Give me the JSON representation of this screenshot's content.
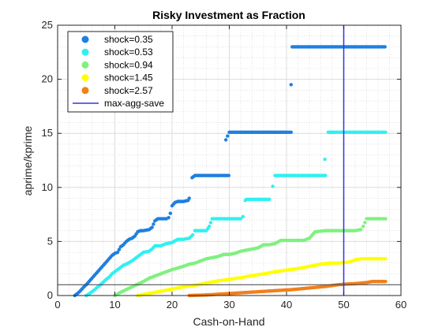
{
  "chart_data": {
    "type": "scatter",
    "title": "Risky Investment as Fraction",
    "xlabel": "Cash-on-Hand",
    "ylabel": "aprime/kprime",
    "xlim": [
      0,
      60
    ],
    "ylim": [
      0,
      25
    ],
    "xticks": [
      0,
      10,
      20,
      30,
      40,
      50,
      60
    ],
    "yticks": [
      0,
      5,
      10,
      15,
      20,
      25
    ],
    "grid": true,
    "minor_grid": true,
    "legend_position": "top-left",
    "reference_hline": {
      "y": 1,
      "color": "#404040"
    },
    "vline": {
      "name": "max-agg-save",
      "x": 50,
      "color": "#3333e6"
    },
    "series": [
      {
        "name": "shock=0.35",
        "color": "#1f7fe0",
        "points": [
          [
            3.0,
            0.0
          ],
          [
            3.5,
            0.2
          ],
          [
            4.0,
            0.45
          ],
          [
            4.5,
            0.75
          ],
          [
            5.0,
            1.0
          ],
          [
            5.5,
            1.3
          ],
          [
            6.0,
            1.6
          ],
          [
            6.5,
            1.9
          ],
          [
            7.0,
            2.2
          ],
          [
            7.5,
            2.5
          ],
          [
            8.0,
            2.8
          ],
          [
            8.5,
            3.1
          ],
          [
            9.0,
            3.4
          ],
          [
            9.5,
            3.7
          ],
          [
            10.0,
            3.9
          ],
          [
            10.5,
            4.0
          ],
          [
            11.0,
            4.5
          ],
          [
            11.5,
            4.7
          ],
          [
            12.0,
            5.0
          ],
          [
            12.5,
            5.2
          ],
          [
            13.0,
            5.3
          ],
          [
            13.5,
            5.5
          ],
          [
            14.0,
            5.9
          ],
          [
            14.5,
            6.0
          ],
          [
            15.0,
            6.0
          ],
          [
            16.0,
            6.1
          ],
          [
            16.5,
            6.3
          ],
          [
            17.0,
            6.9
          ],
          [
            17.5,
            7.1
          ],
          [
            18.0,
            7.1
          ],
          [
            19.0,
            7.1
          ],
          [
            19.4,
            7.2
          ],
          [
            19.7,
            7.6
          ],
          [
            20.0,
            8.3
          ],
          [
            20.5,
            8.6
          ],
          [
            21.0,
            8.7
          ],
          [
            22.0,
            8.7
          ],
          [
            22.8,
            8.8
          ],
          [
            23.0,
            9.0
          ],
          [
            23.5,
            10.9
          ],
          [
            24.0,
            11.1
          ],
          [
            26.0,
            11.1
          ],
          [
            28.0,
            11.1
          ],
          [
            29.9,
            11.1
          ],
          [
            29.4,
            14.4
          ],
          [
            30.0,
            15.1
          ],
          [
            32.0,
            15.1
          ],
          [
            34.0,
            15.1
          ],
          [
            36.0,
            15.1
          ],
          [
            38.0,
            15.1
          ],
          [
            40.0,
            15.1
          ],
          [
            40.8,
            15.1
          ],
          [
            40.8,
            19.5
          ],
          [
            41.0,
            23.0
          ],
          [
            44.0,
            23.0
          ],
          [
            47.0,
            23.0
          ],
          [
            50.0,
            23.0
          ],
          [
            53.0,
            23.0
          ],
          [
            56.0,
            23.0
          ],
          [
            57.2,
            23.0
          ]
        ]
      },
      {
        "name": "shock=0.53",
        "color": "#30f0f0",
        "points": [
          [
            5.0,
            0.0
          ],
          [
            5.5,
            0.15
          ],
          [
            6.0,
            0.35
          ],
          [
            6.5,
            0.55
          ],
          [
            7.0,
            0.8
          ],
          [
            7.5,
            1.0
          ],
          [
            8.0,
            1.25
          ],
          [
            8.5,
            1.5
          ],
          [
            9.0,
            1.7
          ],
          [
            9.5,
            2.0
          ],
          [
            10.0,
            2.2
          ],
          [
            10.5,
            2.4
          ],
          [
            11.0,
            2.6
          ],
          [
            11.5,
            2.8
          ],
          [
            12.0,
            2.9
          ],
          [
            13.0,
            3.2
          ],
          [
            14.0,
            3.6
          ],
          [
            15.0,
            4.0
          ],
          [
            16.0,
            4.1
          ],
          [
            16.5,
            4.3
          ],
          [
            17.0,
            4.6
          ],
          [
            18.0,
            4.6
          ],
          [
            19.0,
            4.8
          ],
          [
            20.0,
            4.9
          ],
          [
            21.0,
            5.2
          ],
          [
            22.0,
            5.2
          ],
          [
            23.0,
            5.3
          ],
          [
            23.6,
            5.6
          ],
          [
            24.0,
            6.0
          ],
          [
            26.0,
            6.0
          ],
          [
            26.5,
            6.4
          ],
          [
            27.0,
            7.1
          ],
          [
            28.0,
            7.1
          ],
          [
            30.0,
            7.1
          ],
          [
            32.0,
            7.1
          ],
          [
            32.4,
            7.3
          ],
          [
            32.8,
            8.8
          ],
          [
            33.0,
            8.9
          ],
          [
            35.0,
            8.9
          ],
          [
            37.0,
            8.9
          ],
          [
            37.6,
            10.1
          ],
          [
            38.0,
            11.1
          ],
          [
            40.0,
            11.1
          ],
          [
            42.0,
            11.1
          ],
          [
            44.0,
            11.1
          ],
          [
            46.0,
            11.1
          ],
          [
            46.8,
            11.1
          ],
          [
            46.7,
            12.6
          ],
          [
            47.3,
            15.1
          ],
          [
            50.0,
            15.1
          ],
          [
            53.0,
            15.1
          ],
          [
            56.0,
            15.1
          ],
          [
            57.3,
            15.1
          ]
        ]
      },
      {
        "name": "shock=0.94",
        "color": "#80f080",
        "points": [
          [
            10.0,
            0.0
          ],
          [
            11.0,
            0.3
          ],
          [
            12.0,
            0.55
          ],
          [
            13.0,
            0.8
          ],
          [
            14.0,
            1.05
          ],
          [
            15.0,
            1.3
          ],
          [
            16.0,
            1.6
          ],
          [
            17.0,
            1.8
          ],
          [
            18.0,
            2.0
          ],
          [
            19.0,
            2.2
          ],
          [
            20.0,
            2.4
          ],
          [
            21.0,
            2.55
          ],
          [
            22.0,
            2.7
          ],
          [
            23.0,
            2.9
          ],
          [
            24.0,
            3.0
          ],
          [
            25.0,
            3.2
          ],
          [
            26.0,
            3.4
          ],
          [
            27.0,
            3.5
          ],
          [
            28.0,
            3.6
          ],
          [
            29.0,
            3.8
          ],
          [
            30.0,
            3.8
          ],
          [
            31.0,
            3.9
          ],
          [
            32.0,
            4.1
          ],
          [
            33.0,
            4.2
          ],
          [
            34.0,
            4.3
          ],
          [
            35.0,
            4.4
          ],
          [
            36.0,
            4.7
          ],
          [
            37.0,
            4.7
          ],
          [
            38.0,
            4.8
          ],
          [
            39.0,
            5.1
          ],
          [
            41.0,
            5.1
          ],
          [
            43.0,
            5.1
          ],
          [
            44.0,
            5.3
          ],
          [
            45.0,
            5.9
          ],
          [
            47.0,
            6.0
          ],
          [
            49.0,
            6.0
          ],
          [
            51.0,
            6.0
          ],
          [
            52.0,
            6.0
          ],
          [
            53.0,
            6.1
          ],
          [
            53.4,
            6.4
          ],
          [
            54.0,
            7.1
          ],
          [
            56.0,
            7.1
          ],
          [
            57.3,
            7.1
          ]
        ]
      },
      {
        "name": "shock=1.45",
        "color": "#ffff00",
        "points": [
          [
            14.0,
            0.0
          ],
          [
            16.0,
            0.2
          ],
          [
            18.0,
            0.4
          ],
          [
            20.0,
            0.6
          ],
          [
            22.0,
            0.8
          ],
          [
            24.0,
            0.95
          ],
          [
            26.0,
            1.15
          ],
          [
            28.0,
            1.35
          ],
          [
            30.0,
            1.5
          ],
          [
            32.0,
            1.65
          ],
          [
            34.0,
            1.85
          ],
          [
            36.0,
            2.0
          ],
          [
            38.0,
            2.2
          ],
          [
            40.0,
            2.35
          ],
          [
            42.0,
            2.5
          ],
          [
            44.0,
            2.7
          ],
          [
            46.0,
            2.9
          ],
          [
            47.5,
            3.0
          ],
          [
            49.0,
            3.0
          ],
          [
            51.0,
            3.1
          ],
          [
            52.0,
            3.3
          ],
          [
            53.0,
            3.4
          ],
          [
            55.0,
            3.4
          ],
          [
            57.3,
            3.4
          ]
        ]
      },
      {
        "name": "shock=2.57",
        "color": "#f27f1a",
        "points": [
          [
            23.0,
            0.0
          ],
          [
            26.0,
            0.05
          ],
          [
            29.0,
            0.15
          ],
          [
            32.0,
            0.25
          ],
          [
            35.0,
            0.35
          ],
          [
            38.0,
            0.45
          ],
          [
            41.0,
            0.55
          ],
          [
            44.0,
            0.7
          ],
          [
            47.0,
            0.85
          ],
          [
            49.0,
            1.0
          ],
          [
            50.0,
            1.05
          ],
          [
            52.0,
            1.1
          ],
          [
            54.0,
            1.2
          ],
          [
            55.0,
            1.3
          ],
          [
            57.3,
            1.3
          ]
        ]
      }
    ]
  }
}
